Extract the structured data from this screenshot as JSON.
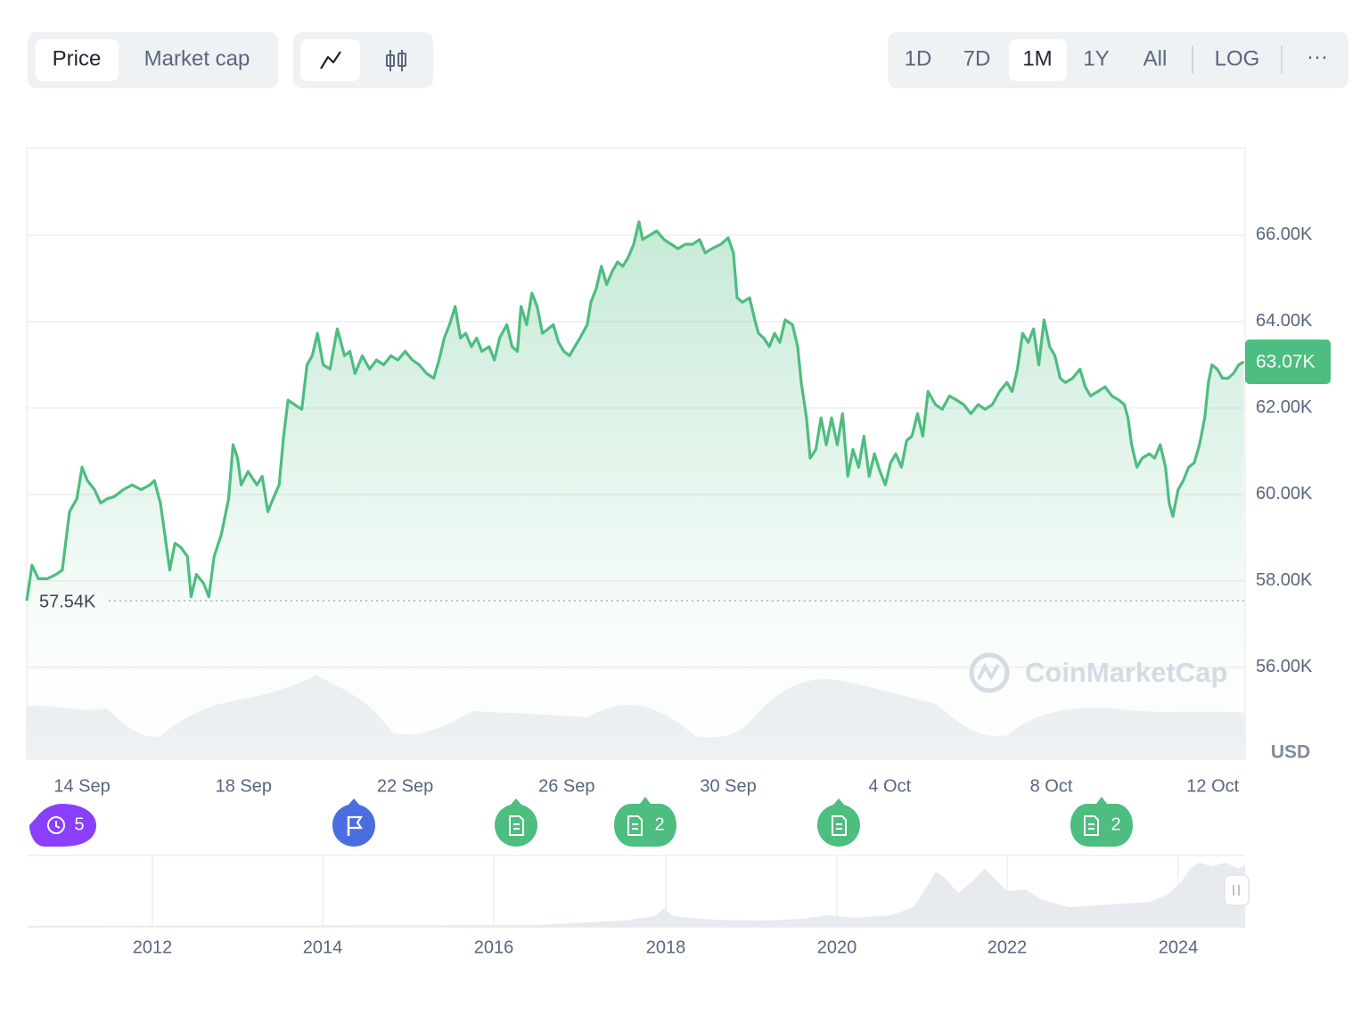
{
  "toolbar": {
    "metrics": [
      "Price",
      "Market cap"
    ],
    "ranges": [
      "1D",
      "7D",
      "1M",
      "1Y",
      "All"
    ],
    "scale": "LOG",
    "more": "···"
  },
  "chart_data": {
    "type": "line",
    "color": "#4dbd80",
    "grid": true,
    "x": [
      -1.37,
      -1.24,
      -1.08,
      -0.86,
      -0.64,
      -0.49,
      -0.31,
      -0.13,
      0,
      0.13,
      0.31,
      0.46,
      0.62,
      0.8,
      1.02,
      1.24,
      1.46,
      1.68,
      1.79,
      1.94,
      2.08,
      2.17,
      2.3,
      2.45,
      2.61,
      2.7,
      2.83,
      3.01,
      3.14,
      3.27,
      3.45,
      3.63,
      3.74,
      3.85,
      3.94,
      4.11,
      4.33,
      4.46,
      4.6,
      4.73,
      4.88,
      4.99,
      5.1,
      5.26,
      5.44,
      5.57,
      5.7,
      5.83,
      5.97,
      6.14,
      6.32,
      6.5,
      6.63,
      6.76,
      6.94,
      7.12,
      7.29,
      7.47,
      7.65,
      7.82,
      8.0,
      8.18,
      8.35,
      8.53,
      8.71,
      8.84,
      8.97,
      9.1,
      9.24,
      9.37,
      9.5,
      9.64,
      9.77,
      9.9,
      10.08,
      10.21,
      10.34,
      10.52,
      10.65,
      10.78,
      10.87,
      11.01,
      11.14,
      11.27,
      11.4,
      11.54,
      11.67,
      11.8,
      11.93,
      12.07,
      12.2,
      12.33,
      12.51,
      12.6,
      12.73,
      12.86,
      12.99,
      13.13,
      13.26,
      13.39,
      13.52,
      13.66,
      13.79,
      13.88,
      14.06,
      14.23,
      14.41,
      14.59,
      14.76,
      14.94,
      15.12,
      15.29,
      15.43,
      15.6,
      15.82,
      16.0,
      16.13,
      16.22,
      16.35,
      16.53,
      16.66,
      16.75,
      16.88,
      17.02,
      17.15,
      17.28,
      17.41,
      17.59,
      17.72,
      17.81,
      17.94,
      18.03,
      18.17,
      18.3,
      18.43,
      18.56,
      18.7,
      18.83,
      18.96,
      19.09,
      19.23,
      19.36,
      19.49,
      19.62,
      19.76,
      19.89,
      20.02,
      20.15,
      20.29,
      20.42,
      20.55,
      20.69,
      20.82,
      20.95,
      21.13,
      21.3,
      21.48,
      21.66,
      21.83,
      22.01,
      22.19,
      22.36,
      22.54,
      22.72,
      22.9,
      23.03,
      23.16,
      23.29,
      23.43,
      23.56,
      23.69,
      23.82,
      23.96,
      24.09,
      24.22,
      24.35,
      24.53,
      24.71,
      24.84,
      24.97,
      25.15,
      25.33,
      25.5,
      25.68,
      25.81,
      25.9,
      25.99,
      26.12,
      26.25,
      26.43,
      26.56,
      26.7,
      26.83,
      26.92,
      27.01,
      27.14,
      27.27,
      27.4,
      27.54,
      27.67,
      27.8,
      27.89,
      27.98,
      28.11,
      28.24,
      28.38,
      28.51,
      28.64,
      28.77
    ],
    "values": [
      57540,
      58360,
      58050,
      58050,
      58150,
      58250,
      59600,
      59900,
      60630,
      60320,
      60110,
      59800,
      59900,
      59950,
      60110,
      60220,
      60110,
      60220,
      60320,
      59800,
      58870,
      58250,
      58870,
      58770,
      58560,
      57630,
      58150,
      57940,
      57630,
      58560,
      59080,
      59900,
      61150,
      60840,
      60220,
      60530,
      60220,
      60420,
      59600,
      59900,
      60220,
      61350,
      62180,
      62080,
      61970,
      63000,
      63210,
      63730,
      63000,
      62900,
      63830,
      63210,
      63310,
      62800,
      63210,
      62900,
      63110,
      63000,
      63210,
      63110,
      63310,
      63110,
      63000,
      62800,
      62690,
      63110,
      63620,
      63930,
      64350,
      63620,
      63730,
      63420,
      63620,
      63310,
      63420,
      63110,
      63620,
      63930,
      63420,
      63310,
      64350,
      63930,
      64660,
      64350,
      63730,
      63830,
      63930,
      63520,
      63310,
      63210,
      63420,
      63620,
      63930,
      64450,
      64760,
      65280,
      64860,
      65170,
      65380,
      65280,
      65480,
      65790,
      66310,
      65900,
      66000,
      66100,
      65900,
      65790,
      65690,
      65790,
      65790,
      65900,
      65590,
      65690,
      65790,
      65940,
      65590,
      64550,
      64450,
      64550,
      64040,
      63730,
      63620,
      63420,
      63730,
      63520,
      64040,
      63930,
      63420,
      62590,
      61770,
      60840,
      61040,
      61770,
      61150,
      61770,
      61150,
      61870,
      60420,
      61040,
      60630,
      61350,
      60420,
      60940,
      60530,
      60220,
      60730,
      60940,
      60630,
      61250,
      61350,
      61870,
      61350,
      62380,
      62080,
      61970,
      62280,
      62180,
      62080,
      61870,
      62080,
      61970,
      62080,
      62380,
      62590,
      62380,
      62900,
      63730,
      63520,
      63830,
      63000,
      64040,
      63420,
      63210,
      62690,
      62590,
      62690,
      62900,
      62490,
      62280,
      62380,
      62490,
      62280,
      62180,
      62080,
      61770,
      61150,
      60630,
      60840,
      60940,
      60840,
      61150,
      60630,
      59800,
      59490,
      60110,
      60320,
      60630,
      60730,
      61150,
      61770,
      62590,
      63000,
      62900,
      62690,
      62690,
      62800,
      63000,
      63070
    ],
    "xlim": [
      -1.37,
      28.8
    ],
    "xticks": [
      {
        "value": 0,
        "label": "14 Sep"
      },
      {
        "value": 4,
        "label": "18 Sep"
      },
      {
        "value": 8,
        "label": "22 Sep"
      },
      {
        "value": 12,
        "label": "26 Sep"
      },
      {
        "value": 16,
        "label": "30 Sep"
      },
      {
        "value": 20,
        "label": "4 Oct"
      },
      {
        "value": 24,
        "label": "8 Oct"
      },
      {
        "value": 28,
        "label": "12 Oct"
      }
    ],
    "ylim": [
      53870,
      68020
    ],
    "yticks": [
      {
        "value": 56000,
        "label": "56.00K"
      },
      {
        "value": 58000,
        "label": "58.00K"
      },
      {
        "value": 60000,
        "label": "60.00K"
      },
      {
        "value": 62000,
        "label": "62.00K"
      },
      {
        "value": 64000,
        "label": "64.00K"
      },
      {
        "value": 66000,
        "label": "66.00K"
      }
    ],
    "start_price": {
      "value": 57540,
      "label": "57.54K"
    },
    "last_price": {
      "value": 63070,
      "label": "63.07K"
    },
    "currency": "USD",
    "watermark": "CoinMarketCap"
  },
  "events": [
    "5",
    "2",
    "2"
  ],
  "navigator": {
    "years": [
      "2012",
      "2014",
      "2016",
      "2018",
      "2020",
      "2022",
      "2024"
    ]
  }
}
